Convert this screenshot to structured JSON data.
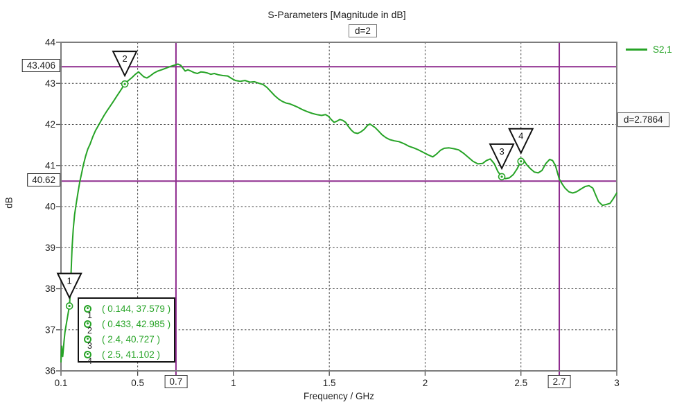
{
  "title": "S-Parameters [Magnitude in dB]",
  "subtitle_box": "d=2",
  "delta_box": "d=2.7864",
  "legend": {
    "label": "S2,1"
  },
  "axis": {
    "y_name": "dB",
    "x_name": "Frequency / GHz"
  },
  "colors": {
    "curve": "#26a326",
    "ref_line": "#8e2b8e",
    "frame": "#7c7c7c",
    "grid": "#3f3f3f",
    "text": "#1f1f1f"
  },
  "ref_lines": {
    "horizontal": [
      {
        "value": 43.406,
        "label": "43.406"
      },
      {
        "value": 40.62,
        "label": "40.62"
      }
    ],
    "vertical": [
      {
        "value": 0.7,
        "label": "0.7"
      },
      {
        "value": 2.7,
        "label": "2.7"
      }
    ]
  },
  "markers": [
    {
      "id": "1",
      "x": 0.144,
      "y": 37.579,
      "label": "( 0.144, 37.579 )"
    },
    {
      "id": "2",
      "x": 0.433,
      "y": 42.985,
      "label": "( 0.433, 42.985 )"
    },
    {
      "id": "3",
      "x": 2.4,
      "y": 40.727,
      "label": "( 2.4, 40.727 )"
    },
    {
      "id": "4",
      "x": 2.5,
      "y": 41.102,
      "label": "( 2.5, 41.102 )"
    }
  ],
  "chart_data": {
    "type": "line",
    "title": "S-Parameters [Magnitude in dB]",
    "xlabel": "Frequency / GHz",
    "ylabel": "dB",
    "xlim": [
      0.1,
      3
    ],
    "ylim": [
      36,
      44
    ],
    "grid": true,
    "legend_position": "top-right",
    "x_ticks": [
      0.1,
      0.5,
      1,
      1.5,
      2,
      2.5,
      3
    ],
    "x_tick_labels": [
      "0.1",
      "0.5",
      "1",
      "1.5",
      "2",
      "2.5",
      "3"
    ],
    "y_ticks": [
      44,
      43,
      42,
      41,
      40,
      39,
      38,
      37,
      36
    ],
    "y_tick_labels": [
      "44",
      "43",
      "42",
      "41",
      "40",
      "39",
      "38",
      "37",
      "36"
    ],
    "x_grid": [
      0.5,
      1,
      1.5,
      2,
      2.5
    ],
    "y_grid": [
      37,
      38,
      39,
      40,
      41,
      42,
      43
    ],
    "series": [
      {
        "name": "S2,1",
        "color": "#26a326",
        "points": [
          [
            0.1,
            36.22
          ],
          [
            0.102,
            36.45
          ],
          [
            0.104,
            36.6
          ],
          [
            0.107,
            36.42
          ],
          [
            0.109,
            36.35
          ],
          [
            0.112,
            36.5
          ],
          [
            0.116,
            36.72
          ],
          [
            0.121,
            36.95
          ],
          [
            0.127,
            37.12
          ],
          [
            0.133,
            37.28
          ],
          [
            0.138,
            37.42
          ],
          [
            0.144,
            37.579
          ],
          [
            0.149,
            37.95
          ],
          [
            0.153,
            38.45
          ],
          [
            0.158,
            39.0
          ],
          [
            0.164,
            39.45
          ],
          [
            0.171,
            39.8
          ],
          [
            0.179,
            40.05
          ],
          [
            0.189,
            40.35
          ],
          [
            0.198,
            40.6
          ],
          [
            0.208,
            40.82
          ],
          [
            0.216,
            41.0
          ],
          [
            0.228,
            41.22
          ],
          [
            0.24,
            41.4
          ],
          [
            0.252,
            41.52
          ],
          [
            0.266,
            41.7
          ],
          [
            0.28,
            41.85
          ],
          [
            0.295,
            41.97
          ],
          [
            0.31,
            42.1
          ],
          [
            0.325,
            42.22
          ],
          [
            0.34,
            42.33
          ],
          [
            0.356,
            42.44
          ],
          [
            0.372,
            42.55
          ],
          [
            0.39,
            42.68
          ],
          [
            0.41,
            42.82
          ],
          [
            0.433,
            42.985
          ],
          [
            0.452,
            43.07
          ],
          [
            0.47,
            43.14
          ],
          [
            0.488,
            43.22
          ],
          [
            0.505,
            43.28
          ],
          [
            0.518,
            43.22
          ],
          [
            0.532,
            43.16
          ],
          [
            0.548,
            43.13
          ],
          [
            0.565,
            43.18
          ],
          [
            0.585,
            43.25
          ],
          [
            0.605,
            43.3
          ],
          [
            0.625,
            43.33
          ],
          [
            0.648,
            43.37
          ],
          [
            0.67,
            43.41
          ],
          [
            0.69,
            43.44
          ],
          [
            0.71,
            43.47
          ],
          [
            0.725,
            43.44
          ],
          [
            0.738,
            43.36
          ],
          [
            0.748,
            43.3
          ],
          [
            0.762,
            43.33
          ],
          [
            0.778,
            43.3
          ],
          [
            0.795,
            43.26
          ],
          [
            0.812,
            43.24
          ],
          [
            0.83,
            43.28
          ],
          [
            0.848,
            43.27
          ],
          [
            0.865,
            43.25
          ],
          [
            0.882,
            43.22
          ],
          [
            0.9,
            43.24
          ],
          [
            0.92,
            43.21
          ],
          [
            0.945,
            43.19
          ],
          [
            0.97,
            43.18
          ],
          [
            0.99,
            43.12
          ],
          [
            1.01,
            43.07
          ],
          [
            1.035,
            43.05
          ],
          [
            1.06,
            43.07
          ],
          [
            1.085,
            43.03
          ],
          [
            1.11,
            43.04
          ],
          [
            1.135,
            43.0
          ],
          [
            1.155,
            42.97
          ],
          [
            1.175,
            42.9
          ],
          [
            1.195,
            42.8
          ],
          [
            1.215,
            42.7
          ],
          [
            1.235,
            42.62
          ],
          [
            1.255,
            42.56
          ],
          [
            1.275,
            42.52
          ],
          [
            1.295,
            42.5
          ],
          [
            1.315,
            42.46
          ],
          [
            1.335,
            42.42
          ],
          [
            1.36,
            42.36
          ],
          [
            1.385,
            42.31
          ],
          [
            1.41,
            42.27
          ],
          [
            1.435,
            42.24
          ],
          [
            1.46,
            42.22
          ],
          [
            1.48,
            42.24
          ],
          [
            1.495,
            42.2
          ],
          [
            1.51,
            42.12
          ],
          [
            1.525,
            42.05
          ],
          [
            1.54,
            42.08
          ],
          [
            1.555,
            42.12
          ],
          [
            1.57,
            42.1
          ],
          [
            1.585,
            42.05
          ],
          [
            1.6,
            41.95
          ],
          [
            1.615,
            41.86
          ],
          [
            1.63,
            41.8
          ],
          [
            1.648,
            41.78
          ],
          [
            1.665,
            41.82
          ],
          [
            1.682,
            41.88
          ],
          [
            1.7,
            41.98
          ],
          [
            1.712,
            42.01
          ],
          [
            1.725,
            41.97
          ],
          [
            1.74,
            41.92
          ],
          [
            1.755,
            41.85
          ],
          [
            1.775,
            41.75
          ],
          [
            1.795,
            41.68
          ],
          [
            1.815,
            41.63
          ],
          [
            1.84,
            41.6
          ],
          [
            1.865,
            41.58
          ],
          [
            1.89,
            41.53
          ],
          [
            1.915,
            41.47
          ],
          [
            1.94,
            41.43
          ],
          [
            1.965,
            41.38
          ],
          [
            1.99,
            41.32
          ],
          [
            2.015,
            41.26
          ],
          [
            2.04,
            41.21
          ],
          [
            2.06,
            41.28
          ],
          [
            2.08,
            41.37
          ],
          [
            2.1,
            41.42
          ],
          [
            2.125,
            41.43
          ],
          [
            2.15,
            41.41
          ],
          [
            2.175,
            41.38
          ],
          [
            2.2,
            41.3
          ],
          [
            2.225,
            41.2
          ],
          [
            2.25,
            41.1
          ],
          [
            2.275,
            41.04
          ],
          [
            2.3,
            41.05
          ],
          [
            2.32,
            41.12
          ],
          [
            2.34,
            41.16
          ],
          [
            2.36,
            41.05
          ],
          [
            2.38,
            40.85
          ],
          [
            2.4,
            40.727
          ],
          [
            2.42,
            40.68
          ],
          [
            2.44,
            40.7
          ],
          [
            2.46,
            40.78
          ],
          [
            2.48,
            40.92
          ],
          [
            2.5,
            41.102
          ],
          [
            2.512,
            41.15
          ],
          [
            2.53,
            41.02
          ],
          [
            2.55,
            40.92
          ],
          [
            2.57,
            40.84
          ],
          [
            2.59,
            40.82
          ],
          [
            2.61,
            40.88
          ],
          [
            2.63,
            41.05
          ],
          [
            2.65,
            41.15
          ],
          [
            2.665,
            41.12
          ],
          [
            2.68,
            41.0
          ],
          [
            2.7,
            40.67
          ],
          [
            2.715,
            40.55
          ],
          [
            2.73,
            40.45
          ],
          [
            2.75,
            40.36
          ],
          [
            2.77,
            40.33
          ],
          [
            2.79,
            40.36
          ],
          [
            2.81,
            40.42
          ],
          [
            2.835,
            40.49
          ],
          [
            2.855,
            40.51
          ],
          [
            2.875,
            40.45
          ],
          [
            2.89,
            40.28
          ],
          [
            2.905,
            40.12
          ],
          [
            2.925,
            40.03
          ],
          [
            2.945,
            40.05
          ],
          [
            2.965,
            40.08
          ],
          [
            2.98,
            40.18
          ],
          [
            3.0,
            40.33
          ]
        ]
      }
    ]
  }
}
